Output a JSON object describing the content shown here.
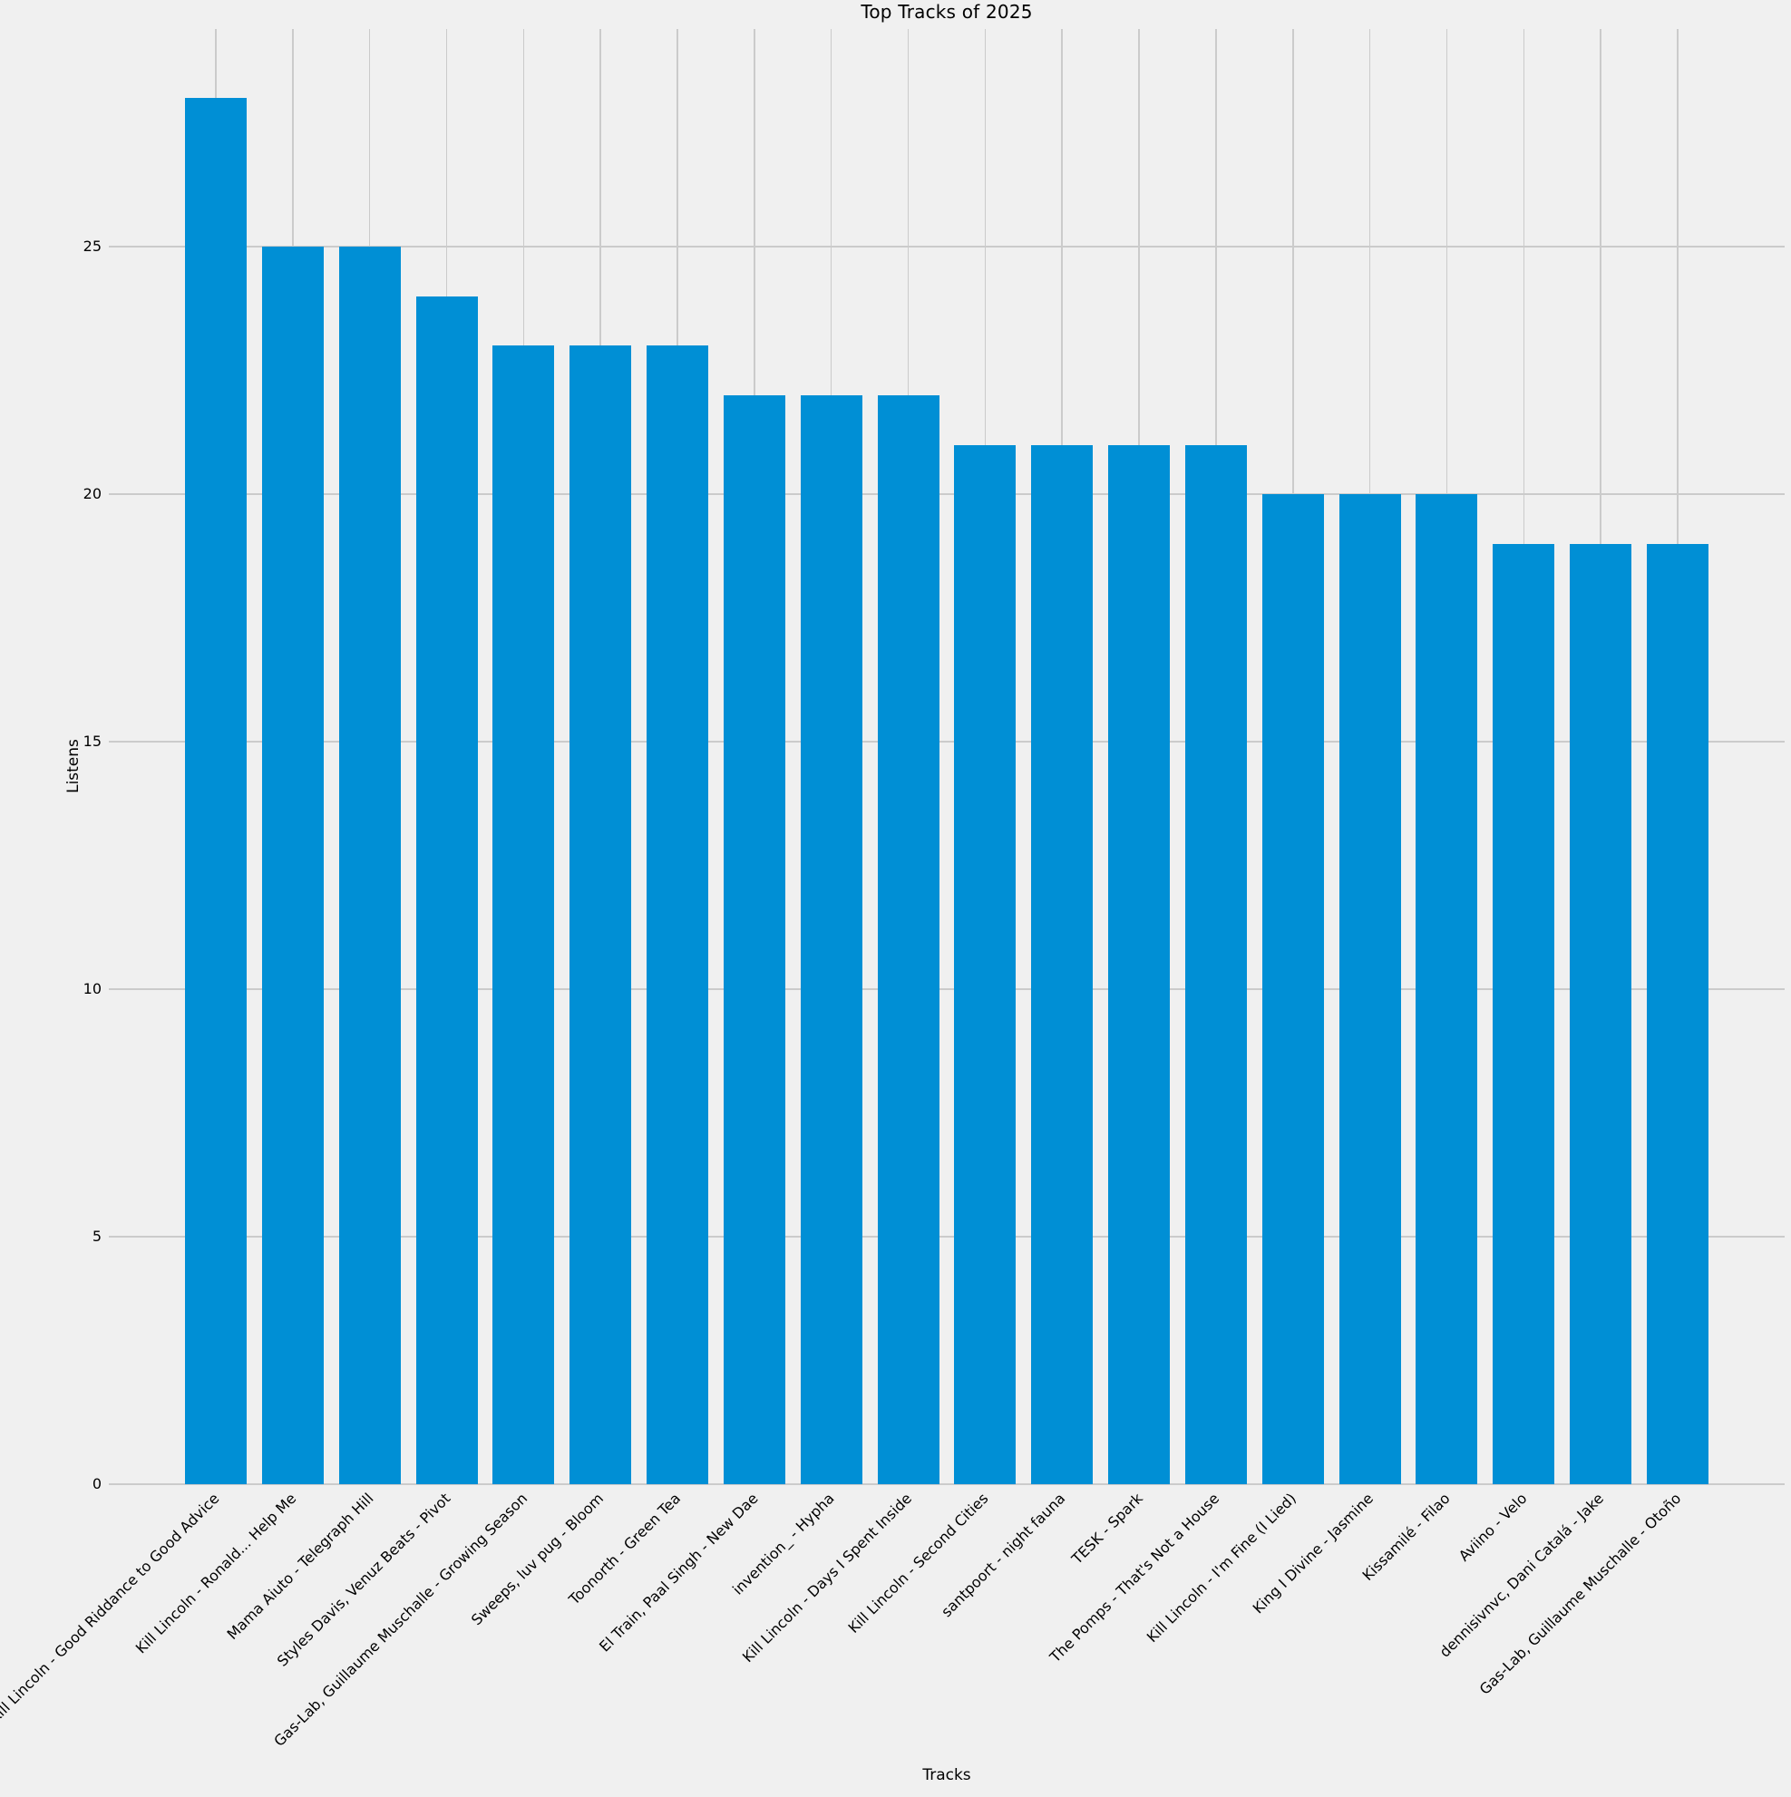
{
  "chart_data": {
    "type": "bar",
    "title": "Top Tracks of 2025",
    "xlabel": "Tracks",
    "ylabel": "Listens",
    "categories": [
      "Kill Lincoln - Good Riddance to Good Advice",
      "Kill Lincoln - Ronald... Help Me",
      "Mama Aiuto - Telegraph Hill",
      "Styles Davis, Venuz Beats - Pivot",
      "Gas-Lab, Guillaume Muschalle - Growing Season",
      "Sweeps, luv pug - Bloom",
      "Toonorth - Green Tea",
      "El Train, Paal Singh - New Dae",
      "invention_ - Hypha",
      "Kill Lincoln - Days I Spent Inside",
      "Kill Lincoln - Second Cities",
      "santpoort - night fauna",
      "TESK - Spark",
      "The Pomps - That's Not a House",
      "Kill Lincoln - I'm Fine (I Lied)",
      "King I Divine - Jasmine",
      "Kissamilé - Filao",
      "Aviino - Velo",
      "dennisivnvc, Dani Catalá - Jake",
      "Gas-Lab, Guillaume Muschalle - Otoño"
    ],
    "values": [
      28,
      25,
      25,
      24,
      23,
      23,
      23,
      22,
      22,
      22,
      21,
      21,
      21,
      21,
      20,
      20,
      20,
      19,
      19,
      19
    ],
    "yticks": [
      0,
      5,
      10,
      15,
      20,
      25
    ],
    "ylim": [
      0,
      29.4
    ],
    "grid": true,
    "legend_position": "none",
    "colors": {
      "bar": "#008fd5",
      "background": "#f0f0f0",
      "grid": "#cbcbcb",
      "text": "#000000"
    }
  }
}
